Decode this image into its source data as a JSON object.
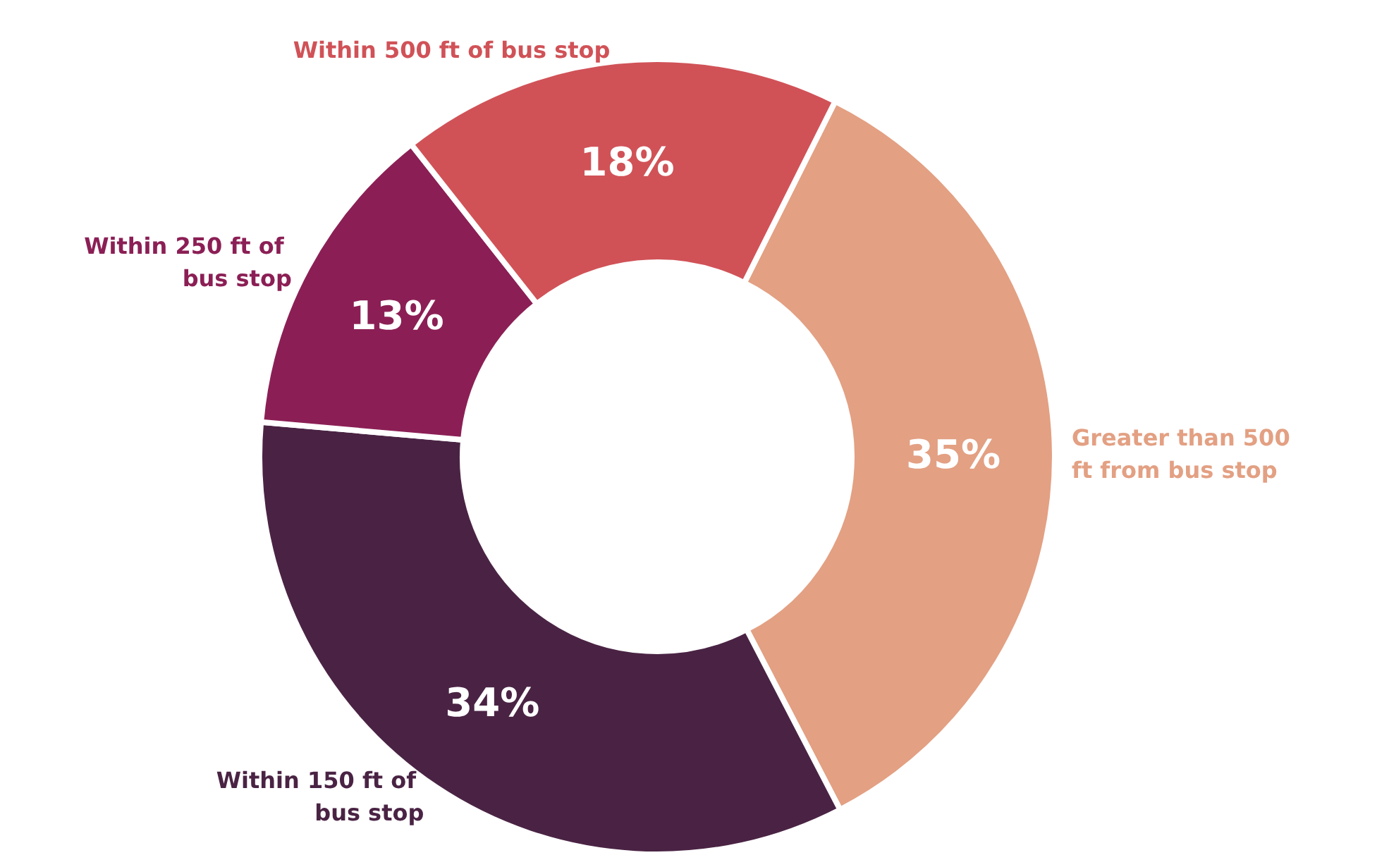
{
  "chart_data": {
    "type": "donut",
    "categories": [
      "Greater than 500 ft from bus stop",
      "Within 150 ft of bus stop",
      "Within 250 ft of bus stop",
      "Within 500 ft of bus stop"
    ],
    "values": [
      35,
      34,
      13,
      18
    ],
    "colors": [
      "#e3a083",
      "#4a2344",
      "#8b1f55",
      "#d05257"
    ],
    "value_labels": [
      "35%",
      "34%",
      "13%",
      "18%"
    ],
    "legend": false
  }
}
